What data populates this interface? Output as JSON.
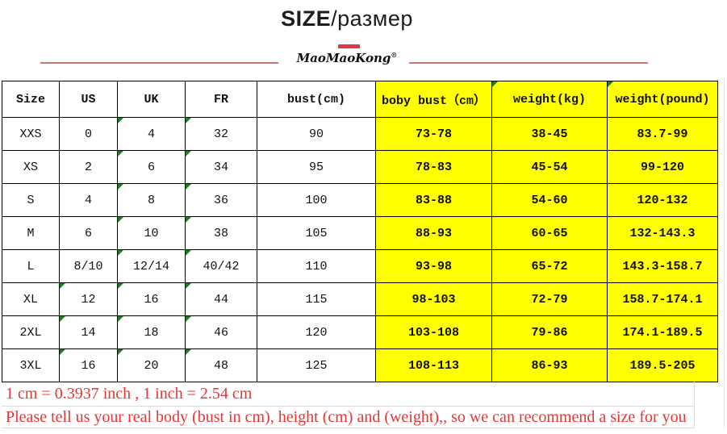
{
  "header": {
    "title_bold": "SIZE",
    "title_rest": "/размер",
    "logo": "MaoMaoKong",
    "registered_mark": "®"
  },
  "colors": {
    "table_highlight": "#ffff00",
    "marker_green": "#1e7d1e",
    "accent_red": "#e23743",
    "divider_red": "#bf5f63",
    "note_red": "#e53535",
    "border_black": "#000000"
  },
  "table": {
    "columns": [
      "Size",
      "US",
      "UK",
      "FR",
      "bust(cm)",
      "boby bust（cm）",
      "weight(kg)",
      "weight(pound)"
    ],
    "highlight_from": 5,
    "header_markers": [
      6,
      7
    ],
    "rows": [
      {
        "cells": [
          "XXS",
          "0",
          "4",
          "32",
          "90",
          "73-78",
          "38-45",
          "83.7-99"
        ],
        "markers": [
          2,
          3
        ]
      },
      {
        "cells": [
          "XS",
          "2",
          "6",
          "34",
          "95",
          "78-83",
          "45-54",
          "99-120"
        ],
        "markers": [
          2,
          3
        ]
      },
      {
        "cells": [
          "S",
          "4",
          "8",
          "36",
          "100",
          "83-88",
          "54-60",
          "120-132"
        ],
        "markers": [
          2,
          3
        ]
      },
      {
        "cells": [
          "M",
          "6",
          "10",
          "38",
          "105",
          "88-93",
          "60-65",
          "132-143.3"
        ],
        "markers": [
          2,
          3
        ]
      },
      {
        "cells": [
          "L",
          "8/10",
          "12/14",
          "40/42",
          "110",
          "93-98",
          "65-72",
          "143.3-158.7"
        ],
        "markers": [
          2,
          3
        ]
      },
      {
        "cells": [
          "XL",
          "12",
          "16",
          "44",
          "115",
          "98-103",
          "72-79",
          "158.7-174.1"
        ],
        "markers": [
          1,
          2,
          3
        ]
      },
      {
        "cells": [
          "2XL",
          "14",
          "18",
          "46",
          "120",
          "103-108",
          "79-86",
          "174.1-189.5"
        ],
        "markers": [
          1,
          2,
          3
        ]
      },
      {
        "cells": [
          "3XL",
          "16",
          "20",
          "48",
          "125",
          "108-113",
          "86-93",
          "189.5-205"
        ],
        "markers": [
          1,
          2,
          3
        ]
      }
    ]
  },
  "footnotes": [
    "1 cm = 0.3937 inch , 1 inch = 2.54 cm",
    "Please tell us your real body (bust in cm), height (cm) and (weight),, so we can recommend a size for you"
  ]
}
